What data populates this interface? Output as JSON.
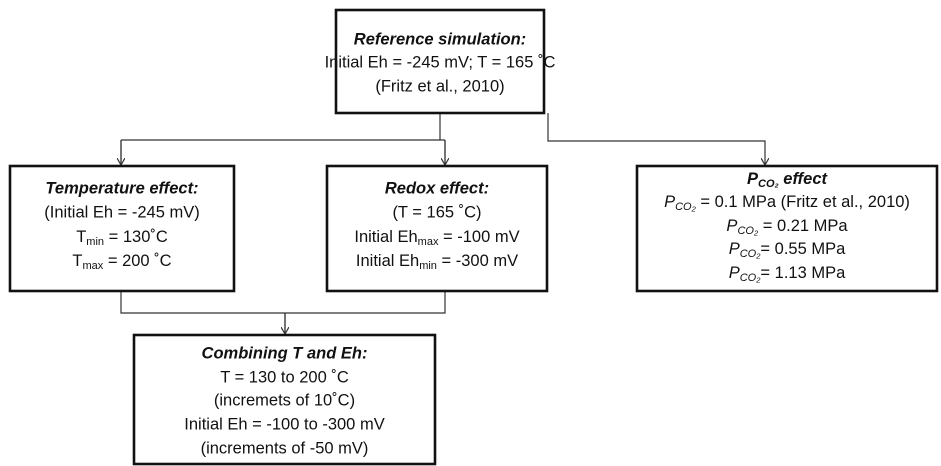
{
  "nodes": [
    {
      "title": "Reference simulation:",
      "lines": [
        "Initial Eh = -245 mV; T = 165 ˚C",
        "(Fritz et al., 2010)"
      ]
    },
    {
      "title": "Temperature effect:",
      "lines": [
        "(Initial Eh = -245 mV)",
        {
          "pre": "T",
          "sub": "min",
          "post": " = 130˚C"
        },
        {
          "pre": "T",
          "sub": "max",
          "post": " = 200 ˚C"
        }
      ]
    },
    {
      "title": "Redox effect:",
      "lines": [
        "(T = 165 ˚C)",
        {
          "pre": "Initial Eh",
          "sub": "max",
          "post": " = -100 mV"
        },
        {
          "pre": "Initial Eh",
          "sub": "min",
          "post": " = -300 mV"
        }
      ]
    },
    {
      "title": {
        "pre": "P",
        "sub": "CO₂",
        "post": " effect"
      },
      "lines": [
        {
          "pre": "P",
          "sub": "CO₂",
          "post": " = 0.1 MPa (Fritz et al., 2010)"
        },
        {
          "pre": "P",
          "sub": "CO₂",
          "post": " = 0.21 MPa"
        },
        {
          "pre": "P",
          "sub": "CO₂",
          "post": "= 0.55 MPa"
        },
        {
          "pre": "P",
          "sub": "CO₂",
          "post": "= 1.13 MPa"
        }
      ]
    },
    {
      "title": "Combining T and Eh:",
      "lines": [
        "T = 130 to 200 ˚C",
        "(incremets of 10˚C)",
        "Initial Eh = -100 to -300 mV",
        "(increments of -50 mV)"
      ]
    }
  ]
}
